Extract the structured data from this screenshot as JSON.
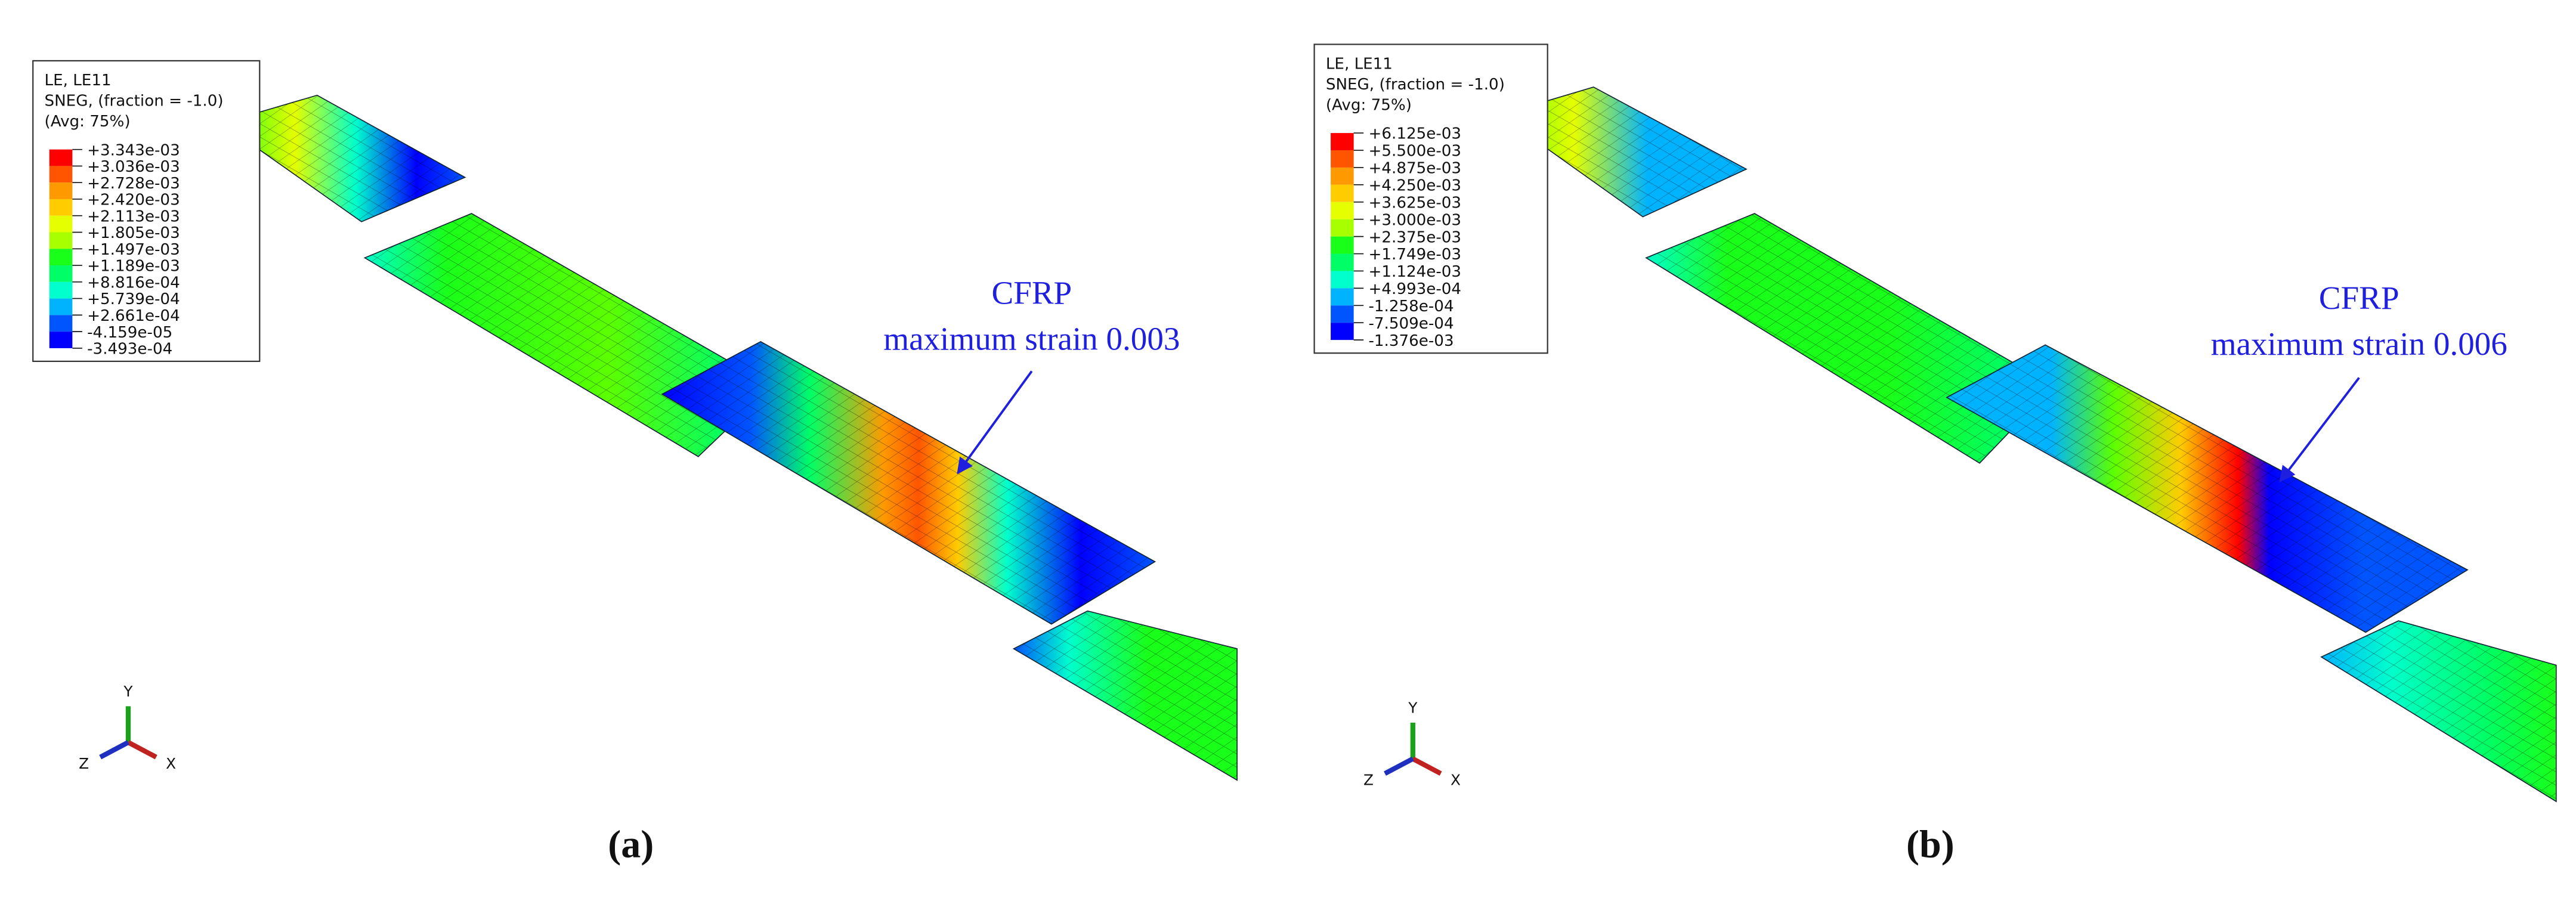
{
  "panels": [
    {
      "legend": {
        "title": [
          "LE, LE11",
          "SNEG, (fraction = -1.0)",
          "(Avg: 75%)"
        ],
        "labels": [
          "+3.343e-03",
          "+3.036e-03",
          "+2.728e-03",
          "+2.420e-03",
          "+2.113e-03",
          "+1.805e-03",
          "+1.497e-03",
          "+1.189e-03",
          "+8.816e-04",
          "+5.739e-04",
          "+2.661e-04",
          "-4.159e-05",
          "-3.493e-04"
        ]
      },
      "annotation": [
        "CFRP",
        "maximum strain 0.003"
      ],
      "triad": {
        "y": "Y",
        "z": "Z",
        "x": "X"
      },
      "caption": "(a)"
    },
    {
      "legend": {
        "title": [
          "LE, LE11",
          "SNEG, (fraction = -1.0)",
          "(Avg: 75%)"
        ],
        "labels": [
          "+6.125e-03",
          "+5.500e-03",
          "+4.875e-03",
          "+4.250e-03",
          "+3.625e-03",
          "+3.000e-03",
          "+2.375e-03",
          "+1.749e-03",
          "+1.124e-03",
          "+4.993e-04",
          "-1.258e-04",
          "-7.509e-04",
          "-1.376e-03"
        ]
      },
      "annotation": [
        "CFRP",
        "maximum strain 0.006"
      ],
      "triad": {
        "y": "Y",
        "z": "Z",
        "x": "X"
      },
      "caption": "(b)"
    }
  ]
}
